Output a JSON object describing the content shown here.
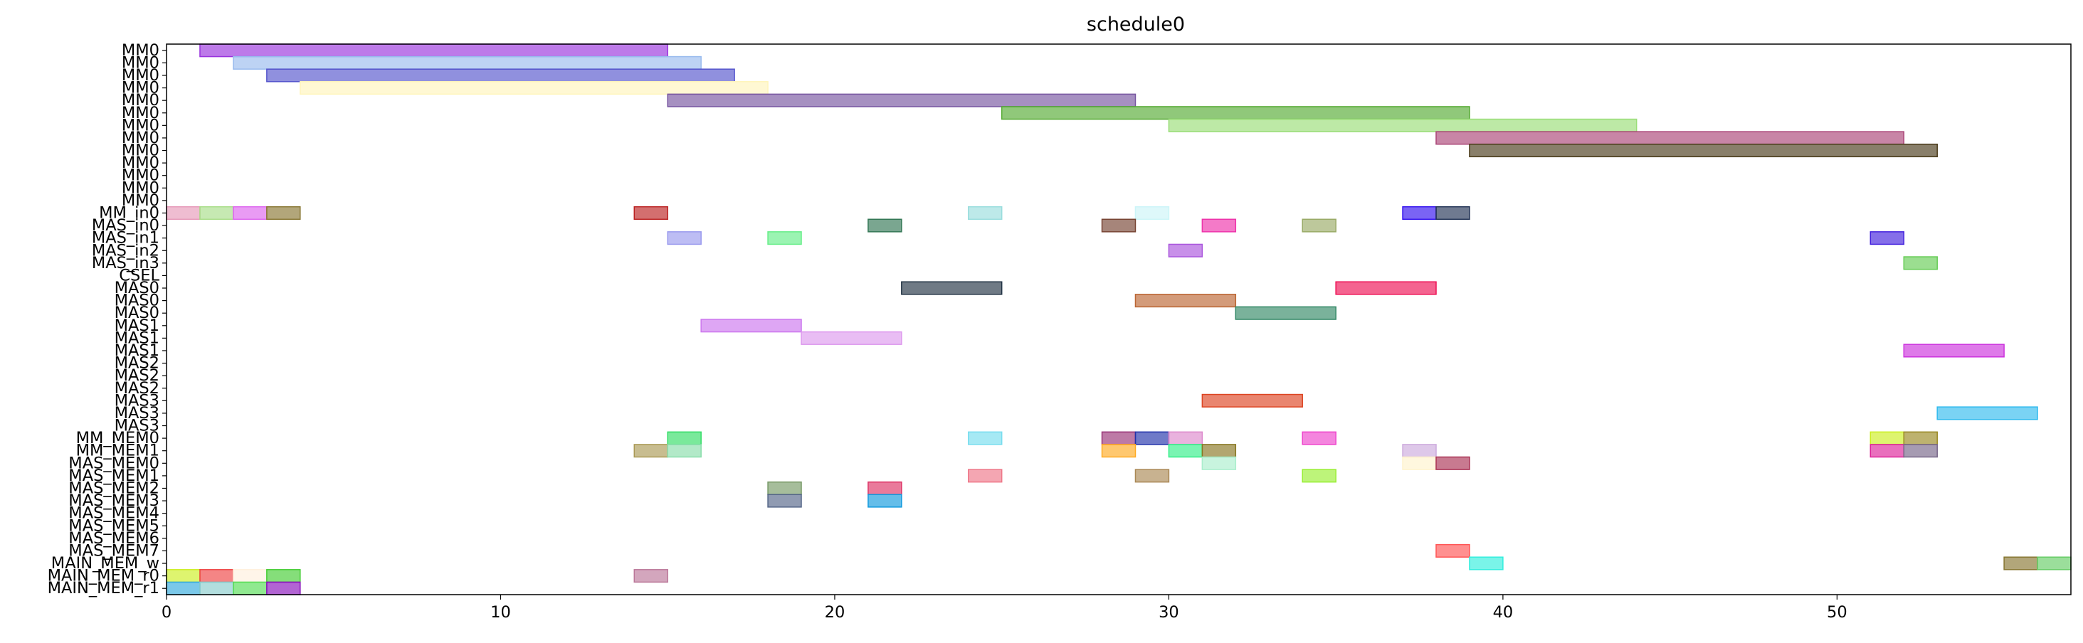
{
  "chart_data": {
    "type": "gantt",
    "title": "schedule0",
    "xlabel": "",
    "ylabel": "",
    "xlim": [
      0,
      57
    ],
    "x_ticks": [
      0,
      10,
      20,
      30,
      40,
      50
    ],
    "x_tick_labels": [
      "0",
      "10",
      "20",
      "30",
      "40",
      "50"
    ],
    "grid": false,
    "legend": "none",
    "rows": [
      "MM0",
      "MM0",
      "MM0",
      "MM0",
      "MM0",
      "MM0",
      "MM0",
      "MM0",
      "MM0",
      "MM0",
      "MM0",
      "MM0",
      "MM0",
      "MM_in0",
      "MAS_in0",
      "MAS_in1",
      "MAS_in2",
      "MAS_in3",
      "CSEL",
      "MAS0",
      "MAS0",
      "MAS0",
      "MAS1",
      "MAS1",
      "MAS1",
      "MAS2",
      "MAS2",
      "MAS2",
      "MAS3",
      "MAS3",
      "MAS3",
      "MM_MEM0",
      "MM_MEM1",
      "MAS_MEM0",
      "MAS_MEM1",
      "MAS_MEM2",
      "MAS_MEM3",
      "MAS_MEM4",
      "MAS_MEM5",
      "MAS_MEM6",
      "MAS_MEM7",
      "MAIN_MEM_w",
      "MAIN_MEM_r0",
      "MAIN_MEM_r1"
    ],
    "tasks": [
      {
        "row": 0,
        "start": 1,
        "end": 15,
        "color": "#9933dd"
      },
      {
        "row": 1,
        "start": 2,
        "end": 16,
        "color": "#99bbee"
      },
      {
        "row": 2,
        "start": 3,
        "end": 17,
        "color": "#5555cc"
      },
      {
        "row": 3,
        "start": 4,
        "end": 18,
        "color": "#fff5bb"
      },
      {
        "row": 4,
        "start": 15,
        "end": 29,
        "color": "#7755a0"
      },
      {
        "row": 5,
        "start": 25,
        "end": 39,
        "color": "#55aa33"
      },
      {
        "row": 6,
        "start": 30,
        "end": 44,
        "color": "#99dd77"
      },
      {
        "row": 7,
        "start": 38,
        "end": 52,
        "color": "#aa4477"
      },
      {
        "row": 8,
        "start": 39,
        "end": 53,
        "color": "#4a3b1a"
      },
      {
        "row": 13,
        "start": 0,
        "end": 1,
        "color": "#e699b8"
      },
      {
        "row": 13,
        "start": 1,
        "end": 2,
        "color": "#a8dd88"
      },
      {
        "row": 13,
        "start": 2,
        "end": 3,
        "color": "#dd66ee"
      },
      {
        "row": 13,
        "start": 3,
        "end": 4,
        "color": "#887733"
      },
      {
        "row": 13,
        "start": 14,
        "end": 15,
        "color": "#bb2222"
      },
      {
        "row": 13,
        "start": 24,
        "end": 25,
        "color": "#99dddd"
      },
      {
        "row": 13,
        "start": 29,
        "end": 30,
        "color": "#ccf5f8"
      },
      {
        "row": 13,
        "start": 37,
        "end": 38,
        "color": "#3311ee"
      },
      {
        "row": 13,
        "start": 38,
        "end": 39,
        "color": "#223355"
      },
      {
        "row": 14,
        "start": 21,
        "end": 22,
        "color": "#337755"
      },
      {
        "row": 14,
        "start": 28,
        "end": 29,
        "color": "#774433"
      },
      {
        "row": 14,
        "start": 31,
        "end": 32,
        "color": "#ee33aa"
      },
      {
        "row": 14,
        "start": 34,
        "end": 35,
        "color": "#99aa66"
      },
      {
        "row": 15,
        "start": 15,
        "end": 16,
        "color": "#9999ee"
      },
      {
        "row": 15,
        "start": 18,
        "end": 19,
        "color": "#66ee88"
      },
      {
        "row": 15,
        "start": 51,
        "end": 52,
        "color": "#4422dd"
      },
      {
        "row": 16,
        "start": 30,
        "end": 31,
        "color": "#aa55dd"
      },
      {
        "row": 17,
        "start": 52,
        "end": 53,
        "color": "#66cc55"
      },
      {
        "row": 19,
        "start": 22,
        "end": 25,
        "color": "#223344"
      },
      {
        "row": 19,
        "start": 35,
        "end": 38,
        "color": "#ee1155"
      },
      {
        "row": 20,
        "start": 29,
        "end": 32,
        "color": "#bb6633"
      },
      {
        "row": 21,
        "start": 32,
        "end": 35,
        "color": "#338866"
      },
      {
        "row": 22,
        "start": 16,
        "end": 19,
        "color": "#cc77ee"
      },
      {
        "row": 23,
        "start": 19,
        "end": 22,
        "color": "#dd99ee"
      },
      {
        "row": 24,
        "start": 52,
        "end": 55,
        "color": "#cc33dd"
      },
      {
        "row": 28,
        "start": 31,
        "end": 34,
        "color": "#dd4422"
      },
      {
        "row": 29,
        "start": 53,
        "end": 56,
        "color": "#33bbee"
      },
      {
        "row": 31,
        "start": 15,
        "end": 16,
        "color": "#33dd66"
      },
      {
        "row": 31,
        "start": 24,
        "end": 25,
        "color": "#77ddee"
      },
      {
        "row": 31,
        "start": 28,
        "end": 29,
        "color": "#993377"
      },
      {
        "row": 31,
        "start": 29,
        "end": 30,
        "color": "#2233aa"
      },
      {
        "row": 31,
        "start": 30,
        "end": 31,
        "color": "#dd88cc"
      },
      {
        "row": 31,
        "start": 34,
        "end": 35,
        "color": "#ee44cc"
      },
      {
        "row": 31,
        "start": 51,
        "end": 52,
        "color": "#ccee22"
      },
      {
        "row": 31,
        "start": 52,
        "end": 53,
        "color": "#998822"
      },
      {
        "row": 32,
        "start": 14,
        "end": 15,
        "color": "#aa9955"
      },
      {
        "row": 32,
        "start": 15,
        "end": 16,
        "color": "#88ddaa"
      },
      {
        "row": 32,
        "start": 28,
        "end": 29,
        "color": "#ffaa22"
      },
      {
        "row": 32,
        "start": 30,
        "end": 31,
        "color": "#33ee88"
      },
      {
        "row": 32,
        "start": 31,
        "end": 32,
        "color": "#887722"
      },
      {
        "row": 32,
        "start": 37,
        "end": 38,
        "color": "#ccaadd"
      },
      {
        "row": 32,
        "start": 51,
        "end": 52,
        "color": "#dd2299"
      },
      {
        "row": 32,
        "start": 52,
        "end": 53,
        "color": "#776688"
      },
      {
        "row": 33,
        "start": 31,
        "end": 32,
        "color": "#aaeecc"
      },
      {
        "row": 33,
        "start": 37,
        "end": 38,
        "color": "#fff3cc"
      },
      {
        "row": 33,
        "start": 38,
        "end": 39,
        "color": "#aa3355"
      },
      {
        "row": 34,
        "start": 24,
        "end": 25,
        "color": "#ee7788"
      },
      {
        "row": 34,
        "start": 29,
        "end": 30,
        "color": "#aa8855"
      },
      {
        "row": 34,
        "start": 34,
        "end": 35,
        "color": "#99ee33"
      },
      {
        "row": 35,
        "start": 18,
        "end": 19,
        "color": "#779966"
      },
      {
        "row": 35,
        "start": 21,
        "end": 22,
        "color": "#dd3366"
      },
      {
        "row": 36,
        "start": 18,
        "end": 19,
        "color": "#556688"
      },
      {
        "row": 36,
        "start": 21,
        "end": 22,
        "color": "#1199dd"
      },
      {
        "row": 40,
        "start": 38,
        "end": 39,
        "color": "#ff5555"
      },
      {
        "row": 41,
        "start": 39,
        "end": 40,
        "color": "#33eedd"
      },
      {
        "row": 41,
        "start": 55,
        "end": 56,
        "color": "#887733"
      },
      {
        "row": 41,
        "start": 56,
        "end": 57,
        "color": "#66cc66"
      },
      {
        "row": 42,
        "start": 0,
        "end": 1,
        "color": "#ccee22"
      },
      {
        "row": 42,
        "start": 1,
        "end": 2,
        "color": "#ee4444"
      },
      {
        "row": 42,
        "start": 2,
        "end": 3,
        "color": "#fff0dd"
      },
      {
        "row": 42,
        "start": 3,
        "end": 4,
        "color": "#44cc33"
      },
      {
        "row": 42,
        "start": 14,
        "end": 15,
        "color": "#bb7799"
      },
      {
        "row": 43,
        "start": 0,
        "end": 1,
        "color": "#33aadd"
      },
      {
        "row": 43,
        "start": 1,
        "end": 2,
        "color": "#88cccc"
      },
      {
        "row": 43,
        "start": 2,
        "end": 3,
        "color": "#55dd55"
      },
      {
        "row": 43,
        "start": 3,
        "end": 4,
        "color": "#8811bb"
      }
    ]
  }
}
